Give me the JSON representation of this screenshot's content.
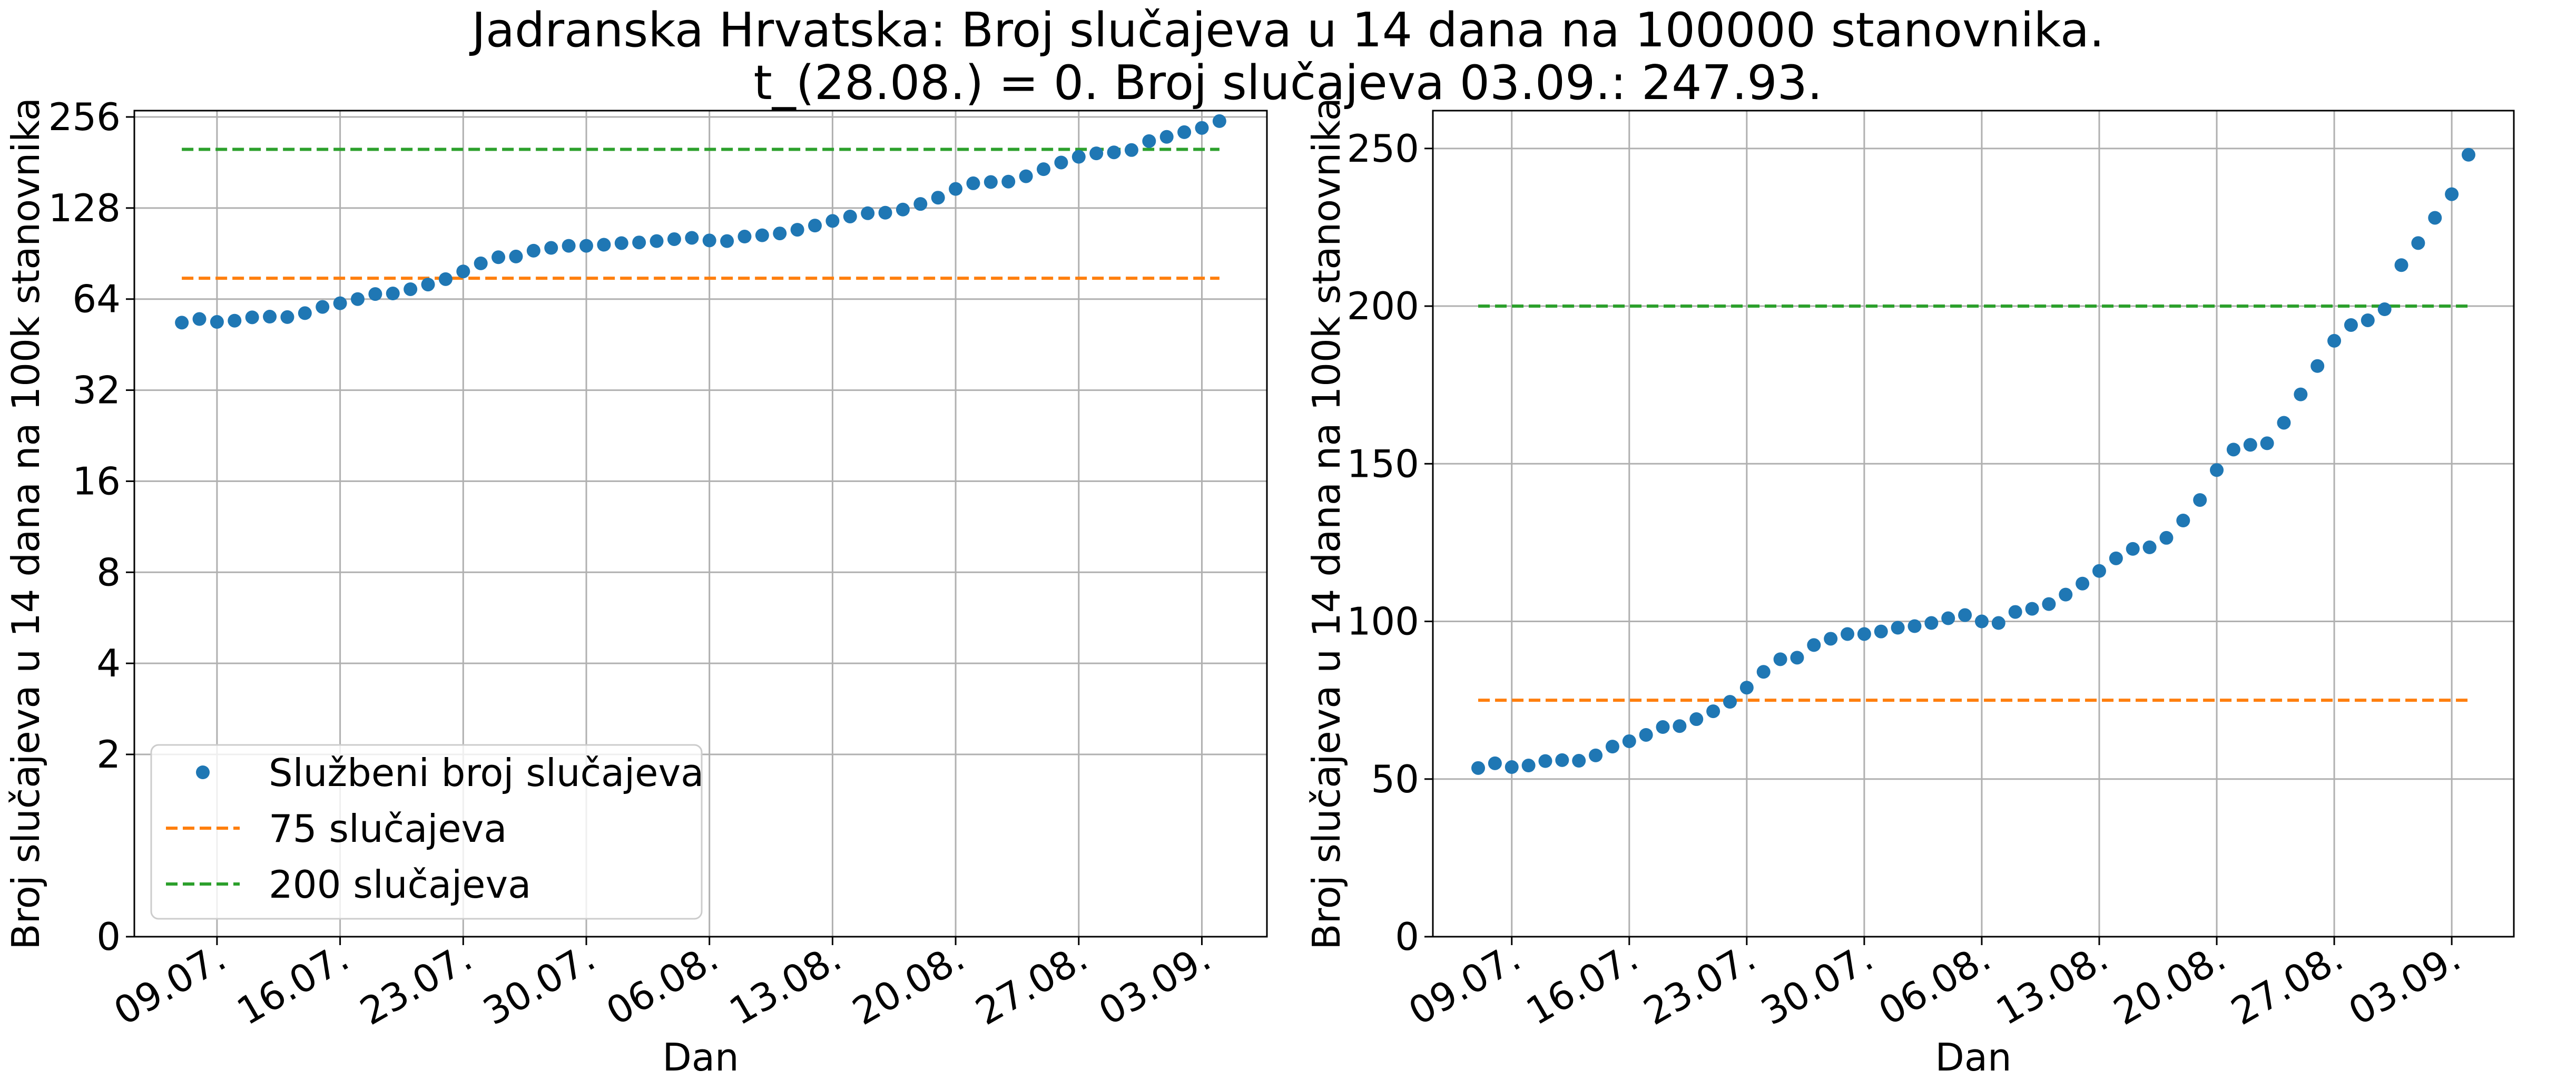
{
  "chart_data": {
    "type": "scatter",
    "title_line1": "Jadranska Hrvatska: Broj slučajeva u 14 dana na 100000 stanovnika.",
    "title_line2": "t_(28.08.) = 0. Broj slučajeva 03.09.: 247.93.",
    "xlabel": "Dan",
    "ylabel": "Broj slučajeva u 14 dana na 100k stanovnika",
    "x_start_date": "2020-07-07",
    "x_ticks": [
      "09.07.",
      "16.07.",
      "23.07.",
      "30.07.",
      "06.08.",
      "13.08.",
      "20.08.",
      "27.08.",
      "03.09."
    ],
    "series": [
      {
        "name": "Službeni broj slučajeva",
        "kind": "points",
        "color": "#1f77b4",
        "values": [
          53.5,
          55,
          53.8,
          54.3,
          55.7,
          56,
          55.8,
          57.5,
          60.3,
          62,
          64,
          66.5,
          66.8,
          69,
          71.5,
          74.5,
          79,
          84,
          88,
          88.5,
          92.5,
          94.5,
          96,
          96,
          96.8,
          98,
          98.5,
          99.5,
          101,
          102,
          100,
          99.5,
          103,
          104,
          105.5,
          108.5,
          112,
          116,
          120,
          123,
          123.5,
          126.5,
          132,
          138.5,
          148,
          154.5,
          156,
          156.5,
          163,
          172,
          181,
          189,
          194,
          195.5,
          199,
          213,
          220,
          228,
          235.5,
          248
        ]
      },
      {
        "name": "75 slučajeva",
        "kind": "dashed",
        "color": "#ff7f0e",
        "value": 75
      },
      {
        "name": "200 slučajeva",
        "kind": "dashed",
        "color": "#2ca02c",
        "value": 200
      }
    ],
    "panels": [
      {
        "scale": "log2",
        "yticks": [
          {
            "v": 0,
            "label": "0"
          },
          {
            "v": 2,
            "label": "2"
          },
          {
            "v": 4,
            "label": "4"
          },
          {
            "v": 8,
            "label": "8"
          },
          {
            "v": 16,
            "label": "16"
          },
          {
            "v": 32,
            "label": "32"
          },
          {
            "v": 64,
            "label": "64"
          },
          {
            "v": 128,
            "label": "128"
          },
          {
            "v": 256,
            "label": "256"
          }
        ],
        "legend": "lower-left",
        "grid": true
      },
      {
        "scale": "linear",
        "ylim": [
          0,
          262
        ],
        "yticks": [
          {
            "v": 0,
            "label": "0"
          },
          {
            "v": 50,
            "label": "50"
          },
          {
            "v": 100,
            "label": "100"
          },
          {
            "v": 150,
            "label": "150"
          },
          {
            "v": 200,
            "label": "200"
          },
          {
            "v": 250,
            "label": "250"
          }
        ],
        "grid": true
      }
    ]
  }
}
